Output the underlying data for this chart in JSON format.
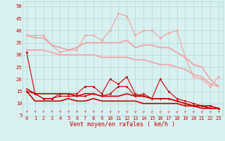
{
  "x": [
    0,
    1,
    2,
    3,
    4,
    5,
    6,
    7,
    8,
    9,
    10,
    11,
    12,
    13,
    14,
    15,
    16,
    17,
    18,
    19,
    20,
    21,
    22,
    23
  ],
  "lines": [
    {
      "values": [
        38,
        38,
        38,
        34,
        31,
        32,
        32,
        38,
        38,
        36,
        40,
        47,
        46,
        38,
        40,
        40,
        37,
        39,
        40,
        29,
        21,
        20,
        17,
        21
      ],
      "color": "#f4a0a0",
      "lw": 0.8,
      "marker": "o",
      "ms": 1.8,
      "zorder": 2
    },
    {
      "values": [
        38,
        37,
        37,
        34,
        33,
        32,
        33,
        35,
        35,
        35,
        35,
        35,
        36,
        33,
        34,
        34,
        33,
        33,
        31,
        29,
        26,
        25,
        20,
        17
      ],
      "color": "#f4a0a0",
      "lw": 1.2,
      "marker": null,
      "ms": 0,
      "zorder": 2
    },
    {
      "values": [
        32,
        32,
        32,
        31,
        30,
        30,
        30,
        30,
        30,
        29,
        29,
        29,
        29,
        28,
        28,
        27,
        26,
        26,
        25,
        24,
        22,
        21,
        18,
        17
      ],
      "color": "#f4a0a0",
      "lw": 1.2,
      "marker": null,
      "ms": 0,
      "zorder": 2
    },
    {
      "values": [
        15,
        11,
        11,
        11,
        11,
        12,
        11,
        11,
        12,
        11,
        11,
        11,
        11,
        11,
        10,
        10,
        10,
        10,
        10,
        9,
        9,
        8,
        8,
        8
      ],
      "color": "#cc0000",
      "lw": 1.2,
      "marker": null,
      "ms": 0,
      "zorder": 3
    },
    {
      "values": [
        16,
        14,
        14,
        14,
        14,
        14,
        13,
        14,
        14,
        13,
        13,
        13,
        14,
        13,
        13,
        12,
        12,
        12,
        11,
        10,
        9,
        9,
        8,
        8
      ],
      "color": "#cc0000",
      "lw": 1.2,
      "marker": null,
      "ms": 0,
      "zorder": 3
    },
    {
      "values": [
        15,
        14,
        12,
        12,
        13,
        13,
        13,
        13,
        14,
        13,
        14,
        17,
        17,
        13,
        14,
        12,
        12,
        12,
        11,
        10,
        9,
        9,
        9,
        8
      ],
      "color": "#cc0000",
      "lw": 0.8,
      "marker": "D",
      "ms": 1.5,
      "zorder": 3
    },
    {
      "values": [
        31,
        14,
        12,
        12,
        14,
        14,
        14,
        17,
        17,
        14,
        20,
        18,
        21,
        14,
        13,
        12,
        20,
        15,
        12,
        11,
        10,
        9,
        9,
        8
      ],
      "color": "#cc0000",
      "lw": 0.8,
      "marker": "o",
      "ms": 1.8,
      "zorder": 3
    }
  ],
  "arrows": {
    "y_data": 6.5,
    "color": "#dd6666",
    "angles_deg": [
      45,
      45,
      45,
      45,
      45,
      45,
      45,
      45,
      45,
      45,
      30,
      20,
      20,
      20,
      20,
      20,
      20,
      20,
      20,
      20,
      20,
      20,
      20,
      45
    ]
  },
  "xlim": [
    -0.5,
    23.5
  ],
  "ylim": [
    5,
    52
  ],
  "yticks": [
    5,
    10,
    15,
    20,
    25,
    30,
    35,
    40,
    45,
    50
  ],
  "xticks": [
    0,
    1,
    2,
    3,
    4,
    5,
    6,
    7,
    8,
    9,
    10,
    11,
    12,
    13,
    14,
    15,
    16,
    17,
    18,
    19,
    20,
    21,
    22,
    23
  ],
  "xlabel": "Vent moyen/en rafales ( km/h )",
  "background_color": "#d8f0f0",
  "grid_color": "#b0d8d8",
  "label_color": "#cc0000",
  "xlabel_fontsize": 6,
  "tick_fontsize": 5
}
